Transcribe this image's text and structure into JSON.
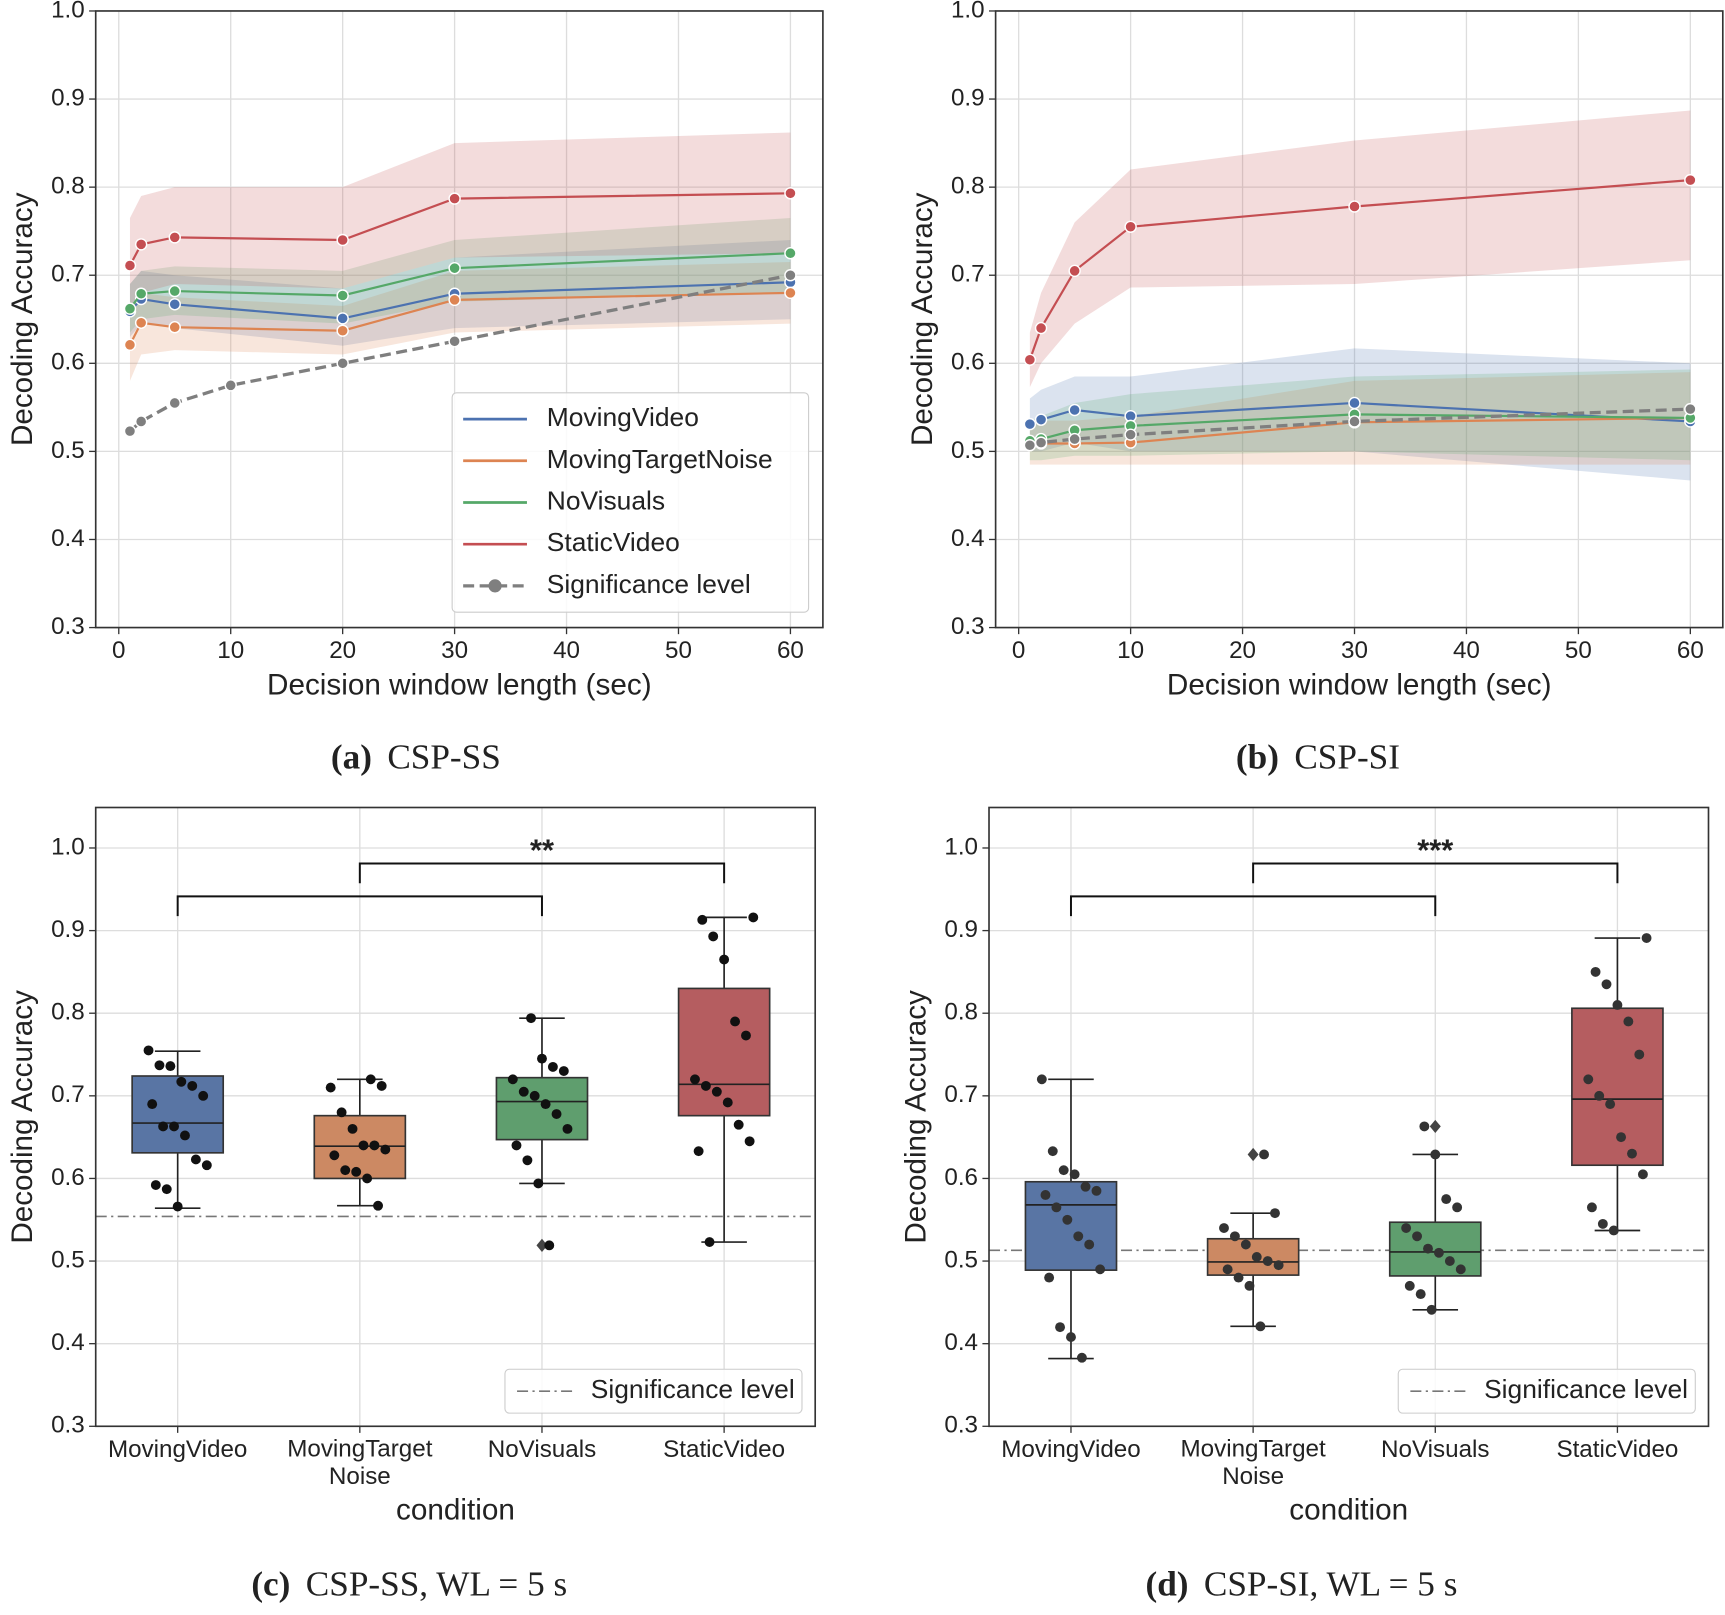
{
  "chart_data": [
    {
      "type": "line",
      "caption_label": "(a)",
      "caption": "CSP-SS",
      "xlabel": "Decision window length (sec)",
      "ylabel": "Decoding Accuracy",
      "xlim": [
        -2.06,
        62.9
      ],
      "ylim": [
        0.3,
        1.0
      ],
      "xticks": [
        0,
        10,
        20,
        30,
        40,
        50,
        60
      ],
      "yticks": [
        0.3,
        0.4,
        0.5,
        0.6,
        0.7,
        0.8,
        0.9,
        {
          "value": 1.0,
          "label": "1.0"
        }
      ],
      "grid": true,
      "legend_loc": "lower right",
      "series": [
        {
          "name": "MovingVideo",
          "color": "#4c72b0",
          "x": [
            1,
            2,
            5,
            20,
            30,
            60
          ],
          "values": [
            0.659,
            0.673,
            0.667,
            0.651,
            0.679,
            0.692
          ],
          "lower": [
            0.63,
            0.645,
            0.64,
            0.62,
            0.64,
            0.65
          ],
          "upper": [
            0.69,
            0.705,
            0.7,
            0.685,
            0.72,
            0.74
          ]
        },
        {
          "name": "MovingTargetNoise",
          "color": "#dd8452",
          "x": [
            1,
            2,
            5,
            20,
            30,
            60
          ],
          "values": [
            0.621,
            0.646,
            0.641,
            0.637,
            0.672,
            0.68
          ],
          "lower": [
            0.58,
            0.61,
            0.615,
            0.61,
            0.635,
            0.645
          ],
          "upper": [
            0.66,
            0.68,
            0.675,
            0.665,
            0.705,
            0.715
          ]
        },
        {
          "name": "NoVisuals",
          "color": "#55a868",
          "x": [
            1,
            2,
            5,
            20,
            30,
            60
          ],
          "values": [
            0.662,
            0.679,
            0.682,
            0.677,
            0.708,
            0.725
          ],
          "lower": [
            0.635,
            0.65,
            0.655,
            0.645,
            0.67,
            0.68
          ],
          "upper": [
            0.69,
            0.705,
            0.71,
            0.705,
            0.74,
            0.765
          ]
        },
        {
          "name": "StaticVideo",
          "color": "#c44e52",
          "x": [
            1,
            2,
            5,
            20,
            30,
            60
          ],
          "values": [
            0.711,
            0.735,
            0.743,
            0.74,
            0.787,
            0.793
          ],
          "lower": [
            0.655,
            0.68,
            0.69,
            0.685,
            0.72,
            0.725
          ],
          "upper": [
            0.765,
            0.79,
            0.8,
            0.8,
            0.85,
            0.862
          ]
        },
        {
          "name": "Significance level",
          "color": "#7f7f7f",
          "style": "dashed",
          "x": [
            1,
            2,
            5,
            10,
            20,
            30,
            60
          ],
          "values": [
            0.523,
            0.534,
            0.555,
            0.575,
            0.6,
            0.625,
            0.7
          ]
        }
      ]
    },
    {
      "type": "line",
      "caption_label": "(b)",
      "caption": "CSP-SI",
      "xlabel": "Decision window length (sec)",
      "ylabel": "Decoding Accuracy",
      "xlim": [
        -2.06,
        62.9
      ],
      "ylim": [
        0.3,
        1.0
      ],
      "xticks": [
        0,
        10,
        20,
        30,
        40,
        50,
        60
      ],
      "yticks": [
        0.3,
        0.4,
        0.5,
        0.6,
        0.7,
        0.8,
        0.9,
        {
          "value": 1.0,
          "label": "1.0"
        }
      ],
      "grid": true,
      "series": [
        {
          "color": "#4c72b0",
          "x": [
            1,
            2,
            5,
            10,
            30,
            60
          ],
          "values": [
            0.531,
            0.536,
            0.547,
            0.54,
            0.555,
            0.534
          ],
          "lower": [
            0.5,
            0.5,
            0.51,
            0.5,
            0.5,
            0.467
          ],
          "upper": [
            0.56,
            0.57,
            0.585,
            0.585,
            0.617,
            0.6
          ]
        },
        {
          "color": "#dd8452",
          "x": [
            1,
            2,
            5,
            10,
            30,
            60
          ],
          "values": [
            0.507,
            0.509,
            0.509,
            0.51,
            0.533,
            0.538
          ],
          "lower": [
            0.485,
            0.485,
            0.485,
            0.485,
            0.485,
            0.485
          ],
          "upper": [
            0.53,
            0.535,
            0.535,
            0.54,
            0.58,
            0.59
          ]
        },
        {
          "color": "#55a868",
          "x": [
            1,
            2,
            5,
            10,
            30,
            60
          ],
          "values": [
            0.512,
            0.514,
            0.524,
            0.529,
            0.542,
            0.538
          ],
          "lower": [
            0.49,
            0.49,
            0.495,
            0.495,
            0.5,
            0.49
          ],
          "upper": [
            0.535,
            0.54,
            0.555,
            0.565,
            0.585,
            0.593
          ]
        },
        {
          "color": "#c44e52",
          "x": [
            1,
            2,
            5,
            10,
            30,
            60
          ],
          "values": [
            0.604,
            0.64,
            0.705,
            0.755,
            0.778,
            0.808
          ],
          "lower": [
            0.573,
            0.6,
            0.645,
            0.686,
            0.69,
            0.717
          ],
          "upper": [
            0.635,
            0.68,
            0.76,
            0.82,
            0.853,
            0.887
          ]
        },
        {
          "color": "#7f7f7f",
          "style": "dashed",
          "x": [
            1,
            2,
            5,
            10,
            30,
            60
          ],
          "values": [
            0.507,
            0.51,
            0.514,
            0.519,
            0.534,
            0.548
          ]
        }
      ]
    },
    {
      "type": "box",
      "caption_label": "(c)",
      "caption": "CSP-SS, WL = 5 s",
      "xlabel": "condition",
      "ylabel": "Decoding Accuracy",
      "ylim": [
        0.3,
        1.049
      ],
      "yticks": [
        0.3,
        0.4,
        0.5,
        0.6,
        0.7,
        0.8,
        0.9,
        {
          "value": 1.0,
          "label": "1.0"
        }
      ],
      "grid": true,
      "legend_loc": "lower right",
      "point_color": "#111111",
      "categories": [
        "MovingVideo",
        "MovingTarget\nNoise",
        "NoVisuals",
        "StaticVideo"
      ],
      "annotation": "**",
      "reference": {
        "name": "Significance level",
        "value": 0.554
      },
      "series": [
        {
          "color": "#5975a4",
          "box": {
            "whislo": 0.564,
            "q1": 0.631,
            "med": 0.667,
            "q3": 0.724,
            "whishi": 0.754
          },
          "fliers": [],
          "values": [
            0.755,
            0.737,
            0.736,
            0.717,
            0.712,
            0.7,
            0.69,
            0.663,
            0.663,
            0.652,
            0.623,
            0.616,
            0.592,
            0.587,
            0.566
          ]
        },
        {
          "color": "#cc8963",
          "box": {
            "whislo": 0.567,
            "q1": 0.6,
            "med": 0.639,
            "q3": 0.676,
            "whishi": 0.72
          },
          "fliers": [],
          "values": [
            0.72,
            0.712,
            0.71,
            0.68,
            0.66,
            0.64,
            0.64,
            0.635,
            0.628,
            0.61,
            0.608,
            0.6,
            0.567
          ]
        },
        {
          "color": "#5f9e6e",
          "box": {
            "whislo": 0.594,
            "q1": 0.647,
            "med": 0.693,
            "q3": 0.722,
            "whishi": 0.794
          },
          "fliers": [
            0.519
          ],
          "values": [
            0.794,
            0.745,
            0.735,
            0.73,
            0.72,
            0.705,
            0.7,
            0.69,
            0.678,
            0.66,
            0.64,
            0.622,
            0.594,
            0.519
          ]
        },
        {
          "color": "#b55d60",
          "box": {
            "whislo": 0.523,
            "q1": 0.676,
            "med": 0.714,
            "q3": 0.83,
            "whishi": 0.916
          },
          "fliers": [],
          "values": [
            0.916,
            0.913,
            0.893,
            0.865,
            0.79,
            0.773,
            0.72,
            0.712,
            0.705,
            0.692,
            0.665,
            0.645,
            0.633,
            0.523
          ]
        }
      ]
    },
    {
      "type": "box",
      "caption_label": "(d)",
      "caption": "CSP-SI, WL = 5 s",
      "xlabel": "condition",
      "ylabel": "Decoding Accuracy",
      "ylim": [
        0.3,
        1.049
      ],
      "yticks": [
        0.3,
        0.4,
        0.5,
        0.6,
        0.7,
        0.8,
        0.9,
        {
          "value": 1.0,
          "label": "1.0"
        }
      ],
      "grid": true,
      "legend_loc": "lower right",
      "point_color": "#333333",
      "categories": [
        "MovingVideo",
        "MovingTarget\nNoise",
        "NoVisuals",
        "StaticVideo"
      ],
      "annotation": "***",
      "reference": {
        "name": "Significance level",
        "value": 0.513
      },
      "series": [
        {
          "color": "#5975a4",
          "box": {
            "whislo": 0.382,
            "q1": 0.489,
            "med": 0.568,
            "q3": 0.596,
            "whishi": 0.72
          },
          "fliers": [],
          "values": [
            0.72,
            0.633,
            0.61,
            0.605,
            0.59,
            0.585,
            0.58,
            0.565,
            0.55,
            0.53,
            0.52,
            0.49,
            0.48,
            0.42,
            0.408,
            0.383
          ]
        },
        {
          "color": "#cc8963",
          "box": {
            "whislo": 0.421,
            "q1": 0.483,
            "med": 0.499,
            "q3": 0.527,
            "whishi": 0.558
          },
          "fliers": [
            0.629
          ],
          "values": [
            0.629,
            0.558,
            0.54,
            0.53,
            0.52,
            0.505,
            0.5,
            0.495,
            0.49,
            0.48,
            0.47,
            0.421
          ]
        },
        {
          "color": "#5f9e6e",
          "box": {
            "whislo": 0.441,
            "q1": 0.482,
            "med": 0.511,
            "q3": 0.547,
            "whishi": 0.629
          },
          "fliers": [
            0.663
          ],
          "values": [
            0.663,
            0.629,
            0.575,
            0.565,
            0.54,
            0.53,
            0.515,
            0.51,
            0.5,
            0.49,
            0.47,
            0.46,
            0.441
          ]
        },
        {
          "color": "#b55d60",
          "box": {
            "whislo": 0.537,
            "q1": 0.616,
            "med": 0.696,
            "q3": 0.806,
            "whishi": 0.891
          },
          "fliers": [],
          "values": [
            0.891,
            0.85,
            0.835,
            0.81,
            0.79,
            0.75,
            0.72,
            0.7,
            0.69,
            0.65,
            0.63,
            0.605,
            0.565,
            0.545,
            0.537
          ]
        }
      ]
    }
  ]
}
